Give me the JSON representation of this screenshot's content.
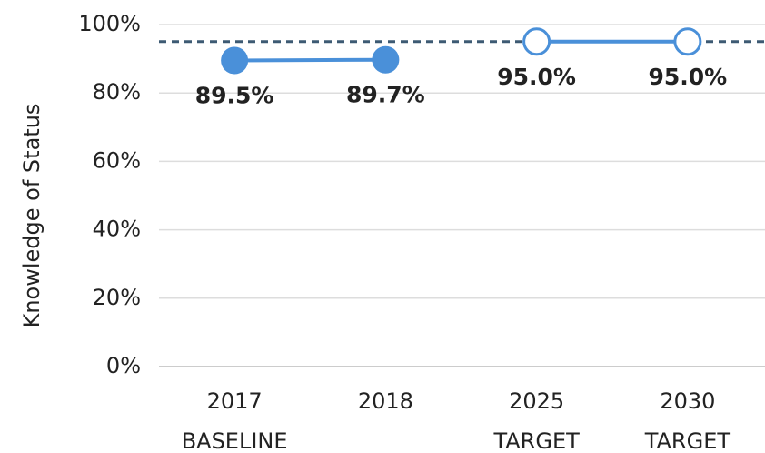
{
  "chart_data": {
    "type": "line",
    "y_label": "Knowledge of Status",
    "categories": [
      [
        "2017",
        "BASELINE"
      ],
      [
        "2018"
      ],
      [
        "2025",
        "TARGET"
      ],
      [
        "2030",
        "TARGET"
      ]
    ],
    "series": [
      {
        "color": "#4a90d9",
        "filled": true,
        "values": [
          89.5,
          89.7,
          null,
          null
        ],
        "value_labels": [
          "89.5%",
          "89.7%",
          null,
          null
        ]
      },
      {
        "color": "#4a90d9",
        "filled": false,
        "values": [
          null,
          null,
          95.0,
          95.0
        ],
        "value_labels": [
          null,
          null,
          "95.0%",
          "95.0%"
        ]
      }
    ],
    "reference_line": {
      "value": 95,
      "color": "#3d5a73"
    },
    "ylim": [
      0,
      100
    ],
    "yticks": [
      {
        "value": 0,
        "label": "0%"
      },
      {
        "value": 20,
        "label": "20%"
      },
      {
        "value": 40,
        "label": "40%"
      },
      {
        "value": 60,
        "label": "60%"
      },
      {
        "value": 80,
        "label": "80%"
      },
      {
        "value": 100,
        "label": "100%"
      }
    ],
    "grid": true
  }
}
